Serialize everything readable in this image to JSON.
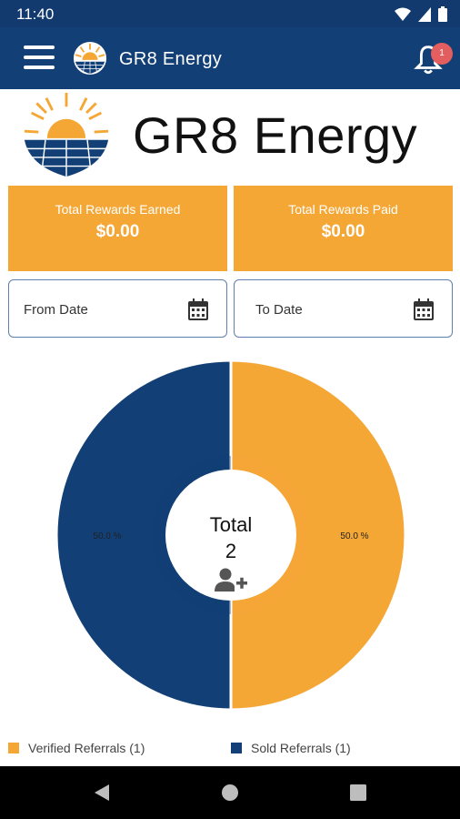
{
  "status_bar": {
    "time": "11:40",
    "icons": [
      "wifi-icon",
      "signal-icon",
      "battery-icon"
    ]
  },
  "app_bar": {
    "title": "GR8 Energy",
    "menu_icon": "hamburger-menu-icon",
    "notification_icon": "bell-icon",
    "notification_count": "1"
  },
  "hero": {
    "title": "GR8 Energy"
  },
  "rewards": {
    "earned": {
      "label": "Total Rewards Earned",
      "value": "$0.00"
    },
    "paid": {
      "label": "Total Rewards Paid",
      "value": "$0.00"
    }
  },
  "date_filters": {
    "from": {
      "placeholder": "From Date",
      "icon": "calendar-icon"
    },
    "to": {
      "placeholder": "To Date",
      "icon": "calendar-icon"
    }
  },
  "chart_data": {
    "type": "pie",
    "center_label": "Total",
    "center_value": "2",
    "center_icon": "add-user-icon",
    "slices": [
      {
        "name": "Verified Referrals (1)",
        "value": 1,
        "percent_label": "50.0 %",
        "color": "#f5a736"
      },
      {
        "name": "Sold Referrals (1)",
        "value": 1,
        "percent_label": "50.0 %",
        "color": "#123f76"
      }
    ]
  },
  "colors": {
    "brand_blue": "#123f76",
    "brand_orange": "#f5a736"
  },
  "nav_bar": {
    "buttons": [
      "back-icon",
      "home-icon",
      "recents-icon"
    ]
  }
}
